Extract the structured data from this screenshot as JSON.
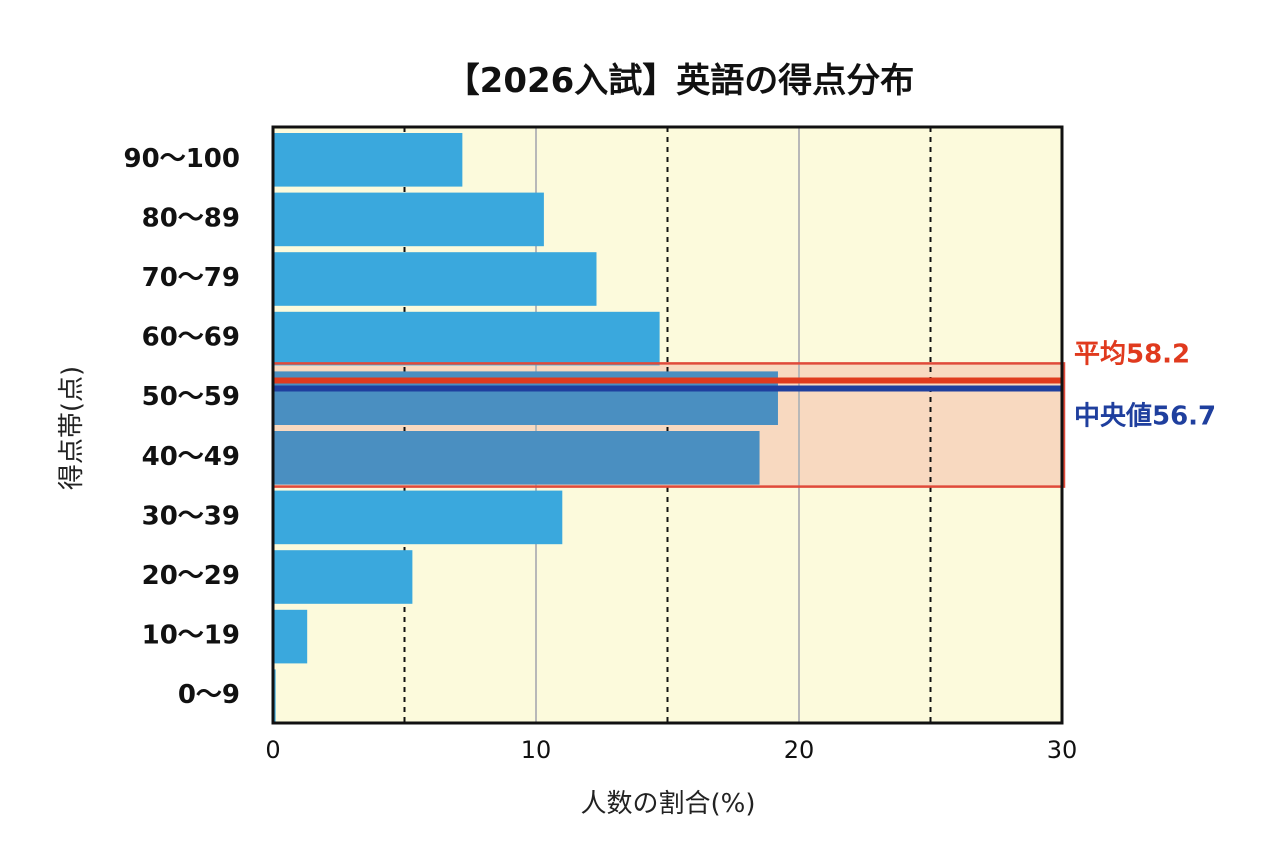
{
  "chart_data": {
    "type": "bar",
    "orientation": "horizontal",
    "title": "【2026入試】英語の得点分布",
    "xlabel": "人数の割合(%)",
    "ylabel": "得点帯(点)",
    "xlim": [
      0,
      30
    ],
    "xticks": [
      0,
      10,
      20,
      30
    ],
    "categories": [
      "90〜100",
      "80〜89",
      "70〜79",
      "60〜69",
      "50〜59",
      "40〜49",
      "30〜39",
      "20〜29",
      "10〜19",
      "0〜9"
    ],
    "values": [
      7.2,
      10.3,
      12.3,
      14.7,
      19.2,
      18.5,
      11.0,
      5.3,
      1.3,
      0.1
    ],
    "annotations": [
      {
        "label": "平均58.2",
        "value": 58.2,
        "color": "#e03a1e"
      },
      {
        "label": "中央値56.7",
        "value": 56.7,
        "color": "#1f3f9e"
      }
    ],
    "highlight_band": [
      "50〜59",
      "40〜49"
    ],
    "colors": {
      "bar": "#3aa8dd",
      "bar_highlight": "#4a8fc1",
      "plot_bg": "#fcfadc",
      "band_fill": "#f8d9c0",
      "band_border": "#e04a3a"
    },
    "grid": {
      "solid": [
        10,
        20
      ],
      "dashed": [
        5,
        15,
        25
      ]
    }
  }
}
